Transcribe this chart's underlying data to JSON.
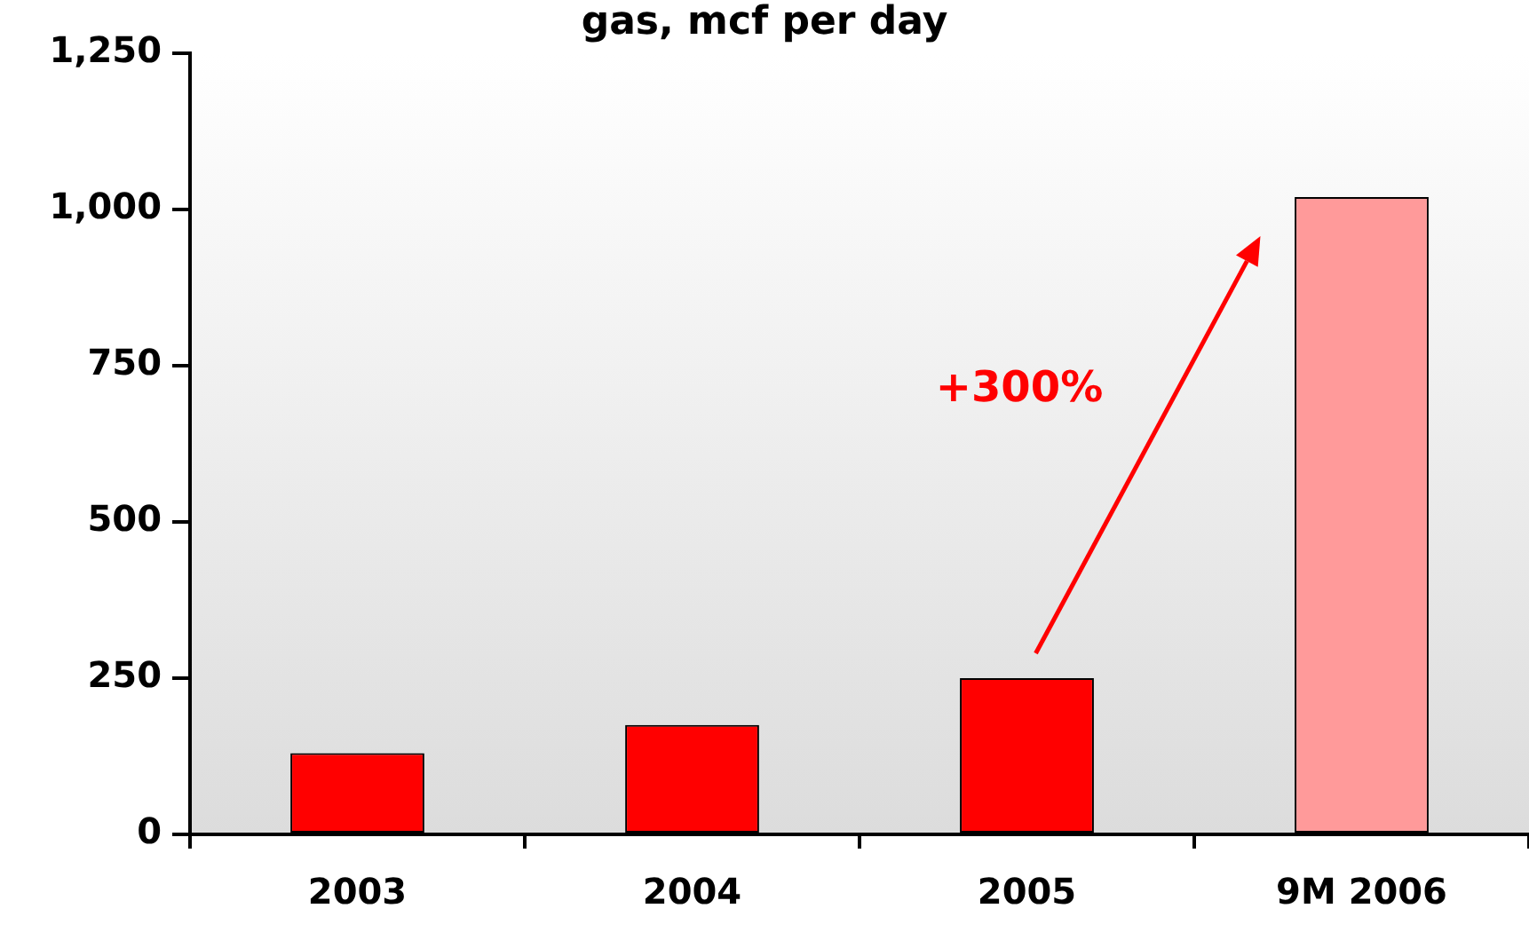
{
  "chart_data": {
    "type": "bar",
    "title": "gas, mcf per day",
    "categories": [
      "2003",
      "2004",
      "2005",
      "9M 2006"
    ],
    "values": [
      130,
      175,
      250,
      1020
    ],
    "colors": [
      "#ff0000",
      "#ff0000",
      "#ff0000",
      "#ff9a9a"
    ],
    "ylim": [
      0,
      1250
    ],
    "yticks": [
      0,
      250,
      500,
      750,
      {
        "value": 1000,
        "label": "1,000"
      },
      {
        "value": 1250,
        "label": "1,250"
      }
    ],
    "grid": false,
    "legend": false,
    "annotations": [
      "+300%"
    ]
  }
}
